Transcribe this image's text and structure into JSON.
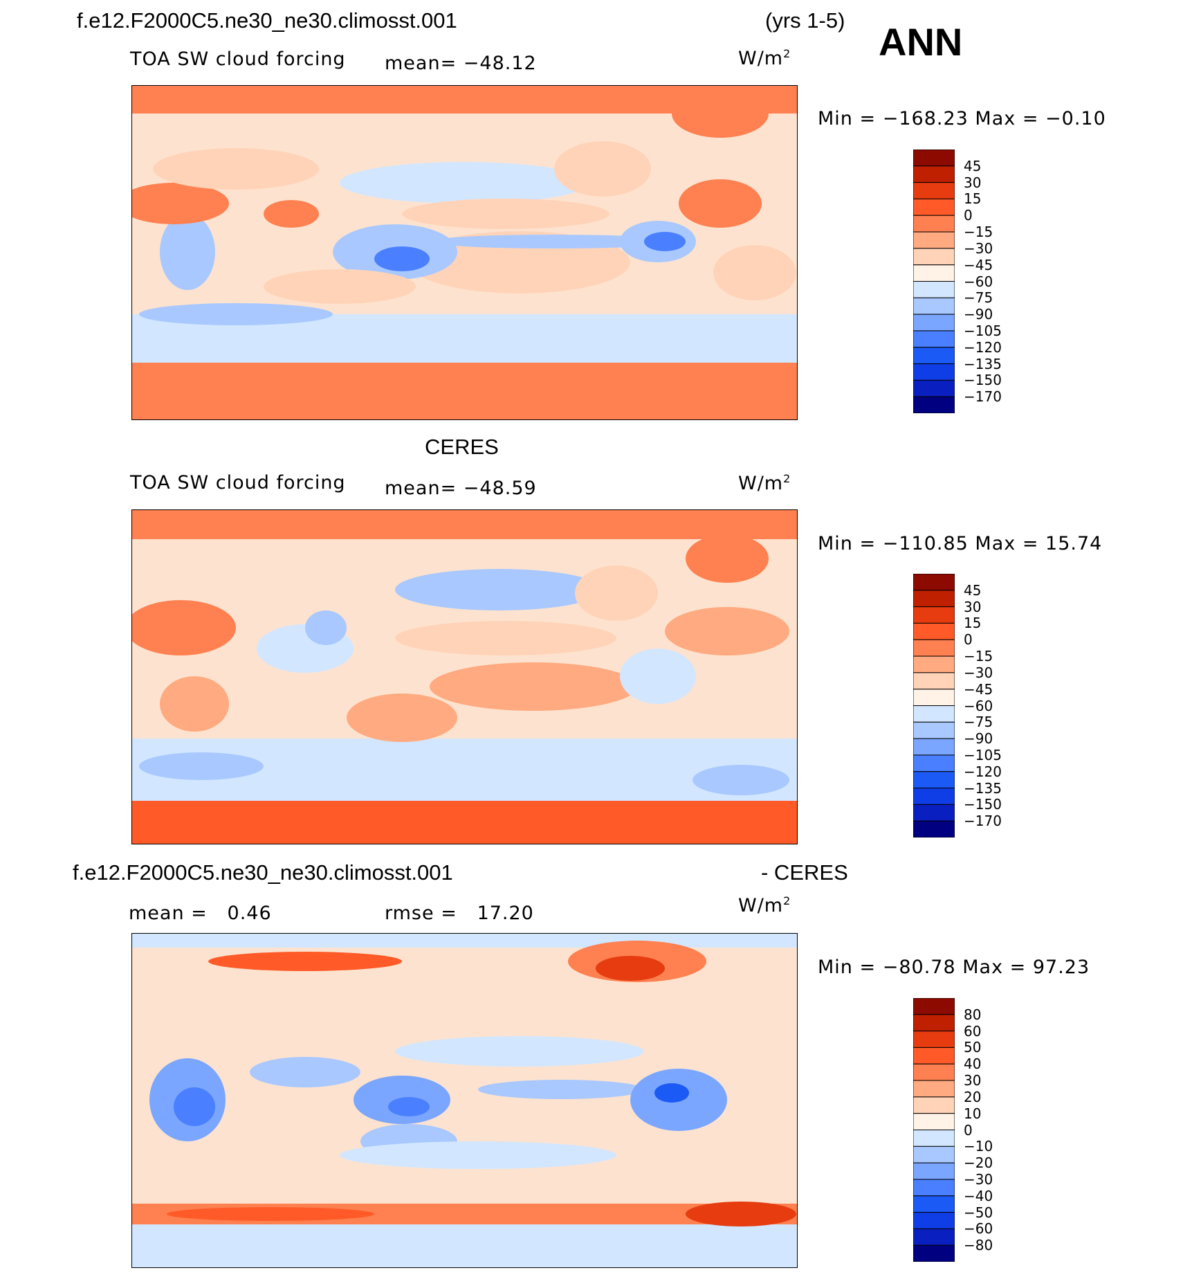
{
  "season": "ANN",
  "case_name": "f.e12.F2000C5.ne30_ne30.climosst.001",
  "years": "(yrs 1-5)",
  "units": "W/m",
  "units_exp": "2",
  "colors": {
    "forcing": [
      "#000080",
      "#0a1fbf",
      "#0f3ee6",
      "#1c5af5",
      "#4a80ff",
      "#7aa6ff",
      "#a8c8ff",
      "#d2e6ff",
      "#fff2e6",
      "#ffd3b8",
      "#ffaa80",
      "#ff8050",
      "#ff5a28",
      "#e63c10",
      "#bf2000",
      "#8c0a00"
    ],
    "diff": [
      "#000080",
      "#0a1fbf",
      "#0f3ee6",
      "#1c5af5",
      "#4a80ff",
      "#7aa6ff",
      "#a8c8ff",
      "#d2e6ff",
      "#fff2e6",
      "#ffd3b8",
      "#ffaa80",
      "#ff8050",
      "#ff5a28",
      "#e63c10",
      "#bf2000",
      "#8c0a00"
    ]
  },
  "chart_data": [
    {
      "type": "heatmap",
      "title": "f.e12.F2000C5.ne30_ne30.climosst.001",
      "variable": "TOA SW cloud forcing",
      "mean_label": "mean=",
      "mean": "−48.12",
      "min_label": "Min =",
      "min": "−168.23",
      "max_label": "Max =",
      "max": "−0.10",
      "colorbar_labels": [
        "45",
        "30",
        "15",
        "0",
        "−15",
        "−30",
        "−45",
        "−60",
        "−75",
        "−90",
        "−105",
        "−120",
        "−135",
        "−150",
        "−170"
      ]
    },
    {
      "type": "heatmap",
      "title": "CERES",
      "variable": "TOA SW cloud forcing",
      "mean_label": "mean=",
      "mean": "−48.59",
      "min_label": "Min =",
      "min": "−110.85",
      "max_label": "Max =",
      "max": "15.74",
      "colorbar_labels": [
        "45",
        "30",
        "15",
        "0",
        "−15",
        "−30",
        "−45",
        "−60",
        "−75",
        "−90",
        "−105",
        "−120",
        "−135",
        "−150",
        "−170"
      ]
    },
    {
      "type": "heatmap",
      "title": "f.e12.F2000C5.ne30_ne30.climosst.001",
      "title_suffix": "- CERES",
      "mean_label": "mean =",
      "mean": "0.46",
      "rmse_label": "rmse =",
      "rmse": "17.20",
      "min_label": "Min =",
      "min": "−80.78",
      "max_label": "Max =",
      "max": "97.23",
      "colorbar_labels": [
        "80",
        "60",
        "50",
        "40",
        "30",
        "20",
        "10",
        "0",
        "−10",
        "−20",
        "−30",
        "−40",
        "−50",
        "−60",
        "−80"
      ]
    }
  ]
}
